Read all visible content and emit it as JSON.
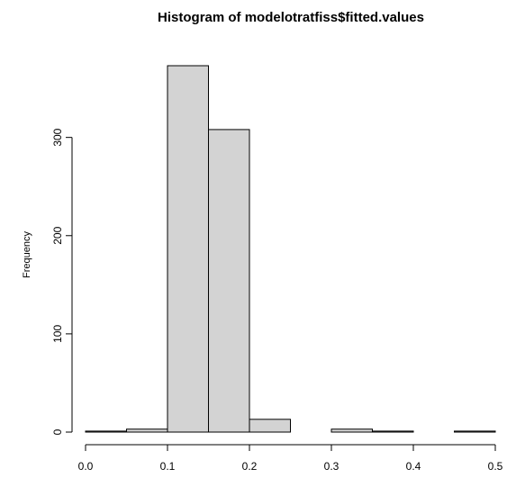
{
  "chart_data": {
    "type": "bar",
    "title": "Histogram of modelotratfiss$fitted.values",
    "xlabel": "",
    "ylabel": "Frequency",
    "bins": [
      {
        "start": 0.0,
        "end": 0.05,
        "count": 1
      },
      {
        "start": 0.05,
        "end": 0.1,
        "count": 3
      },
      {
        "start": 0.1,
        "end": 0.15,
        "count": 373
      },
      {
        "start": 0.15,
        "end": 0.2,
        "count": 308
      },
      {
        "start": 0.2,
        "end": 0.25,
        "count": 13
      },
      {
        "start": 0.25,
        "end": 0.3,
        "count": 0
      },
      {
        "start": 0.3,
        "end": 0.35,
        "count": 3
      },
      {
        "start": 0.35,
        "end": 0.4,
        "count": 1
      },
      {
        "start": 0.4,
        "end": 0.45,
        "count": 0
      },
      {
        "start": 0.45,
        "end": 0.5,
        "count": 1
      }
    ],
    "xticks": [
      "0.0",
      "0.1",
      "0.2",
      "0.3",
      "0.4",
      "0.5"
    ],
    "yticks": [
      "0",
      "100",
      "200",
      "300"
    ],
    "xlim": [
      0,
      0.5
    ],
    "ylim": [
      0,
      373
    ],
    "grid": false,
    "colors": {
      "bar_fill": "#d3d3d3",
      "bar_stroke": "#000000"
    }
  }
}
